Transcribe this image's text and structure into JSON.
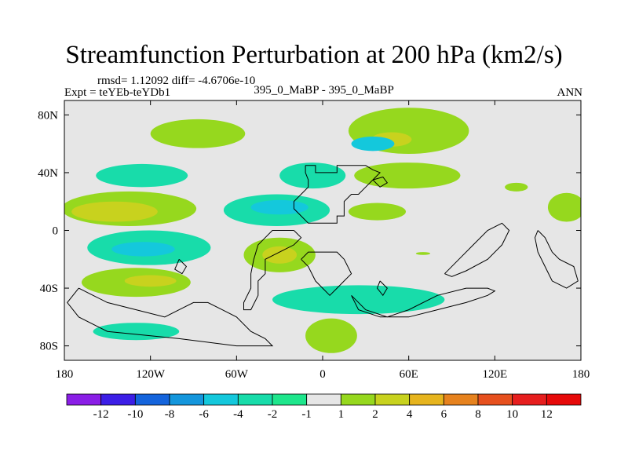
{
  "chart_data": {
    "type": "heatmap",
    "title": "Streamfunction Perturbation at 200 hPa (km2/s)",
    "stats_text": "rmsd= 1.12092 diff= -4.6706e-10",
    "left_label": "Expt = teYEb-teYDb1",
    "center_label": "395_0_MaBP - 395_0_MaBP",
    "season_label": "ANN",
    "xlabel": "",
    "ylabel": "",
    "xlim": [
      -180,
      180
    ],
    "ylim": [
      -90,
      90
    ],
    "x_ticks": [
      {
        "value": -180,
        "label": "180"
      },
      {
        "value": -120,
        "label": "120W"
      },
      {
        "value": -60,
        "label": "60W"
      },
      {
        "value": 0,
        "label": "0"
      },
      {
        "value": 60,
        "label": "60E"
      },
      {
        "value": 120,
        "label": "120E"
      },
      {
        "value": 180,
        "label": "180"
      }
    ],
    "y_ticks": [
      {
        "value": 80,
        "label": "80N"
      },
      {
        "value": 40,
        "label": "40N"
      },
      {
        "value": 0,
        "label": "0"
      },
      {
        "value": -40,
        "label": "40S"
      },
      {
        "value": -80,
        "label": "80S"
      }
    ],
    "colorbar": {
      "boundaries": [
        "-12",
        "-10",
        "-8",
        "-6",
        "-4",
        "-2",
        "-1",
        "1",
        "2",
        "4",
        "6",
        "8",
        "10",
        "12"
      ],
      "colors": [
        "#8a1ee6",
        "#3c1ee6",
        "#1464dc",
        "#1496dc",
        "#14c8dc",
        "#18dcaa",
        "#1ee68c",
        "#e6e6e6",
        "#96d81e",
        "#c8d21e",
        "#e6b41e",
        "#e6821e",
        "#e6501e",
        "#e61e1e",
        "#e60a0a"
      ]
    },
    "background_color": "#e6e6e6",
    "regions": [
      {
        "id": "n-atlantic-high",
        "level": 2,
        "color": "#96d81e",
        "lon": -87,
        "lat": 67,
        "rlon": 33,
        "rlat": 10
      },
      {
        "id": "n-pacific-high",
        "level": 2,
        "color": "#96d81e",
        "lon": 60,
        "lat": 69,
        "rlon": 42,
        "rlat": 16
      },
      {
        "id": "n-pacific-core",
        "level": 4,
        "color": "#c8d21e",
        "lon": 48,
        "lat": 63,
        "rlon": 14,
        "rlat": 5
      },
      {
        "id": "n-pacific-core-2",
        "level": -4,
        "color": "#14c8dc",
        "lon": 35,
        "lat": 60,
        "rlon": 15,
        "rlat": 5
      },
      {
        "id": "nw-atlantic-low",
        "level": -2,
        "color": "#18dcaa",
        "lon": -126,
        "lat": 38,
        "rlon": 32,
        "rlat": 8
      },
      {
        "id": "n-africa-low",
        "level": -2,
        "color": "#18dcaa",
        "lon": -7,
        "lat": 38,
        "rlon": 23,
        "rlat": 9
      },
      {
        "id": "w-pacific-high",
        "level": 2,
        "color": "#96d81e",
        "lon": 59,
        "lat": 38,
        "rlon": 37,
        "rlat": 9
      },
      {
        "id": "small-high",
        "level": 2,
        "color": "#96d81e",
        "lon": 135,
        "lat": 30,
        "rlon": 8,
        "rlat": 3
      },
      {
        "id": "trop-high-west",
        "level": 2,
        "color": "#96d81e",
        "lon": -135,
        "lat": 15,
        "rlon": 47,
        "rlat": 12
      },
      {
        "id": "trop-high-west-core",
        "level": 4,
        "color": "#c8d21e",
        "lon": -145,
        "lat": 13,
        "rlon": 30,
        "rlat": 7
      },
      {
        "id": "trop-high-east",
        "level": 2,
        "color": "#96d81e",
        "lon": 170,
        "lat": 16,
        "rlon": 13,
        "rlat": 10
      },
      {
        "id": "equatorial-low",
        "level": -2,
        "color": "#18dcaa",
        "lon": -32,
        "lat": 14,
        "rlon": 37,
        "rlat": 11
      },
      {
        "id": "equatorial-low-core",
        "level": -4,
        "color": "#14c8dc",
        "lon": -30,
        "lat": 16,
        "rlon": 20,
        "rlat": 5
      },
      {
        "id": "equatorial-high-east",
        "level": 2,
        "color": "#96d81e",
        "lon": 38,
        "lat": 13,
        "rlon": 20,
        "rlat": 6
      },
      {
        "id": "s-pacific-low",
        "level": -2,
        "color": "#18dcaa",
        "lon": -121,
        "lat": -12,
        "rlon": 43,
        "rlat": 12
      },
      {
        "id": "s-pacific-low-core",
        "level": -4,
        "color": "#14c8dc",
        "lon": -125,
        "lat": -13,
        "rlon": 22,
        "rlat": 5
      },
      {
        "id": "s-atlantic-high",
        "level": 2,
        "color": "#96d81e",
        "lon": -30,
        "lat": -17,
        "rlon": 25,
        "rlat": 12
      },
      {
        "id": "s-atlantic-core",
        "level": 4,
        "color": "#c8d21e",
        "lon": -30,
        "lat": -17,
        "rlon": 12,
        "rlat": 6
      },
      {
        "id": "s-indian-low",
        "level": -2,
        "color": "#18dcaa",
        "lon": 25,
        "lat": -48,
        "rlon": 60,
        "rlat": 10
      },
      {
        "id": "s-ocean-high",
        "level": 2,
        "color": "#96d81e",
        "lon": -130,
        "lat": -36,
        "rlon": 38,
        "rlat": 10
      },
      {
        "id": "s-ocean-high-core",
        "level": 4,
        "color": "#c8d21e",
        "lon": -120,
        "lat": -35,
        "rlon": 18,
        "rlat": 4
      },
      {
        "id": "southern-low",
        "level": -2,
        "color": "#18dcaa",
        "lon": -130,
        "lat": -70,
        "rlon": 30,
        "rlat": 6
      },
      {
        "id": "southern-high",
        "level": 2,
        "color": "#96d81e",
        "lon": 6,
        "lat": -73,
        "rlon": 18,
        "rlat": 12
      },
      {
        "id": "small-mid-high",
        "level": 2,
        "color": "#96d81e",
        "lon": 70,
        "lat": -16,
        "rlon": 5,
        "rlat": 1
      }
    ],
    "coastlines": [
      [
        [
          -12,
          45
        ],
        [
          -5,
          45
        ],
        [
          -5,
          40
        ],
        [
          0,
          40
        ],
        [
          10,
          40
        ],
        [
          10,
          45
        ],
        [
          20,
          45
        ],
        [
          30,
          45
        ],
        [
          35,
          42
        ],
        [
          40,
          40
        ],
        [
          35,
          35
        ],
        [
          30,
          30
        ],
        [
          25,
          25
        ],
        [
          20,
          25
        ],
        [
          15,
          20
        ],
        [
          15,
          10
        ],
        [
          10,
          10
        ],
        [
          10,
          5
        ],
        [
          5,
          5
        ],
        [
          0,
          5
        ],
        [
          -5,
          5
        ],
        [
          -10,
          5
        ],
        [
          -15,
          10
        ],
        [
          -20,
          15
        ],
        [
          -20,
          20
        ],
        [
          -15,
          25
        ],
        [
          -10,
          30
        ],
        [
          -10,
          35
        ],
        [
          -12,
          40
        ],
        [
          -12,
          45
        ]
      ],
      [
        [
          -20,
          0
        ],
        [
          -15,
          -5
        ],
        [
          -20,
          -10
        ],
        [
          -30,
          -15
        ],
        [
          -40,
          -20
        ],
        [
          -40,
          -30
        ],
        [
          -45,
          -35
        ],
        [
          -45,
          -45
        ],
        [
          -50,
          -55
        ],
        [
          -55,
          -55
        ],
        [
          -55,
          -50
        ],
        [
          -50,
          -40
        ],
        [
          -50,
          -30
        ],
        [
          -48,
          -20
        ],
        [
          -45,
          -10
        ],
        [
          -40,
          -5
        ],
        [
          -35,
          0
        ],
        [
          -25,
          0
        ],
        [
          -20,
          0
        ]
      ],
      [
        [
          -15,
          -20
        ],
        [
          -10,
          -25
        ],
        [
          -5,
          -35
        ],
        [
          0,
          -40
        ],
        [
          5,
          -45
        ],
        [
          10,
          -40
        ],
        [
          15,
          -35
        ],
        [
          20,
          -30
        ],
        [
          15,
          -20
        ],
        [
          10,
          -15
        ],
        [
          0,
          -15
        ],
        [
          -10,
          -15
        ],
        [
          -15,
          -20
        ]
      ],
      [
        [
          -170,
          -40
        ],
        [
          -160,
          -45
        ],
        [
          -150,
          -50
        ],
        [
          -130,
          -55
        ],
        [
          -110,
          -60
        ],
        [
          -100,
          -55
        ],
        [
          -90,
          -50
        ],
        [
          -80,
          -50
        ],
        [
          -70,
          -55
        ],
        [
          -60,
          -60
        ],
        [
          -50,
          -70
        ],
        [
          -40,
          -75
        ],
        [
          -35,
          -80
        ],
        [
          -60,
          -80
        ],
        [
          -100,
          -75
        ],
        [
          -150,
          -70
        ],
        [
          -170,
          -60
        ],
        [
          -178,
          -50
        ],
        [
          -170,
          -40
        ]
      ],
      [
        [
          20,
          -45
        ],
        [
          30,
          -55
        ],
        [
          45,
          -60
        ],
        [
          60,
          -55
        ],
        [
          80,
          -45
        ],
        [
          100,
          -40
        ],
        [
          115,
          -40
        ],
        [
          120,
          -42
        ],
        [
          115,
          -45
        ],
        [
          100,
          -50
        ],
        [
          80,
          -55
        ],
        [
          60,
          -60
        ],
        [
          40,
          -60
        ],
        [
          25,
          -55
        ],
        [
          20,
          -45
        ]
      ],
      [
        [
          85,
          -30
        ],
        [
          95,
          -20
        ],
        [
          105,
          -10
        ],
        [
          115,
          0
        ],
        [
          125,
          5
        ],
        [
          130,
          0
        ],
        [
          125,
          -10
        ],
        [
          115,
          -20
        ],
        [
          100,
          -28
        ],
        [
          90,
          -32
        ],
        [
          85,
          -30
        ]
      ],
      [
        [
          150,
          0
        ],
        [
          155,
          -5
        ],
        [
          160,
          -15
        ],
        [
          165,
          -20
        ],
        [
          175,
          -25
        ],
        [
          178,
          -35
        ],
        [
          170,
          -40
        ],
        [
          160,
          -35
        ],
        [
          155,
          -25
        ],
        [
          150,
          -15
        ],
        [
          148,
          -5
        ],
        [
          150,
          0
        ]
      ],
      [
        [
          -100,
          -20
        ],
        [
          -95,
          -25
        ],
        [
          -98,
          -30
        ],
        [
          -103,
          -27
        ],
        [
          -100,
          -20
        ]
      ],
      [
        [
          40,
          -35
        ],
        [
          45,
          -40
        ],
        [
          42,
          -45
        ],
        [
          38,
          -40
        ],
        [
          40,
          -35
        ]
      ],
      [
        [
          35,
          35
        ],
        [
          42,
          37
        ],
        [
          45,
          33
        ],
        [
          40,
          30
        ],
        [
          35,
          35
        ]
      ]
    ]
  }
}
